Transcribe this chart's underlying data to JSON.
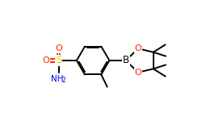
{
  "bg_color": "#ffffff",
  "atom_colors": {
    "S": "#ddcc00",
    "O": "#ff2200",
    "N": "#0000ee",
    "B": "#000000",
    "C": "#000000",
    "H": "#000000"
  },
  "bond_color": "#000000",
  "bond_width": 1.4,
  "figsize": [
    2.5,
    1.5
  ],
  "dpi": 100
}
